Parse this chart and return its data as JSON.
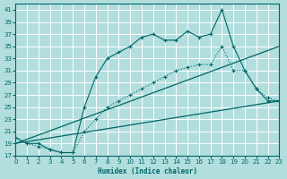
{
  "xlabel": "Humidex (Indice chaleur)",
  "bg_color": "#b2dede",
  "grid_color": "#ffffff",
  "line_color": "#006666",
  "xlim": [
    0,
    23
  ],
  "ylim": [
    17,
    42
  ],
  "yticks": [
    17,
    19,
    21,
    23,
    25,
    27,
    29,
    31,
    33,
    35,
    37,
    39,
    41
  ],
  "xticks": [
    0,
    1,
    2,
    3,
    4,
    5,
    6,
    7,
    8,
    9,
    10,
    11,
    12,
    13,
    14,
    15,
    16,
    17,
    18,
    19,
    20,
    21,
    22,
    23
  ],
  "series1_x": [
    0,
    1,
    2,
    3,
    4,
    5,
    6,
    7,
    8,
    9,
    10,
    11,
    12,
    13,
    14,
    15,
    16,
    17,
    18,
    19,
    20,
    21,
    22,
    23
  ],
  "series1_y": [
    20,
    19,
    19,
    18,
    17.5,
    17.5,
    25,
    30,
    33,
    34,
    35,
    36.5,
    37,
    36,
    36,
    37.5,
    36.5,
    37,
    41,
    35,
    31,
    28,
    26,
    26
  ],
  "series2_x": [
    0,
    1,
    2,
    3,
    4,
    5,
    6,
    7,
    8,
    9,
    10,
    11,
    12,
    13,
    14,
    15,
    16,
    17,
    18,
    19,
    20,
    21,
    22,
    23
  ],
  "series2_y": [
    20,
    19,
    18.5,
    18,
    17.5,
    17.5,
    21,
    23,
    25,
    26,
    27,
    28,
    29,
    30,
    31,
    31.5,
    32,
    32,
    35,
    31,
    31,
    28,
    26.5,
    26
  ],
  "series3_x": [
    0,
    23
  ],
  "series3_y": [
    19,
    35
  ],
  "series4_x": [
    0,
    23
  ],
  "series4_y": [
    19,
    26
  ]
}
